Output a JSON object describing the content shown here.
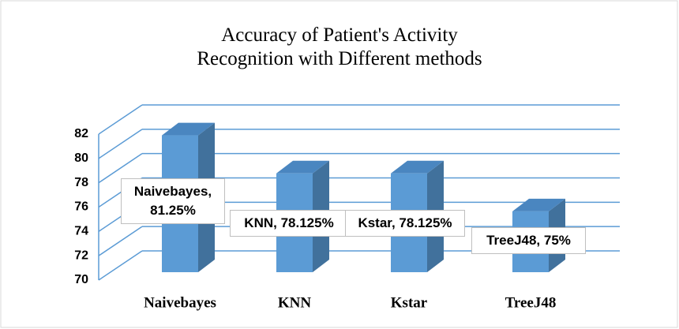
{
  "chart_data": {
    "type": "bar3d",
    "title": "Accuracy of Patient's Activity Recognition with Different methods",
    "categories": [
      "Naivebayes",
      "KNN",
      "Kstar",
      "TreeJ48"
    ],
    "values": [
      81.25,
      78.125,
      78.125,
      75
    ],
    "value_labels": [
      "Naivebayes, 81.25%",
      "KNN, 78.125%",
      "Kstar, 78.125%",
      "TreeJ48, 75%"
    ],
    "color": "#5b9bd5",
    "ylim": [
      70,
      82
    ],
    "yticks": [
      70,
      72,
      74,
      76,
      78,
      80,
      82
    ],
    "grid": true
  }
}
